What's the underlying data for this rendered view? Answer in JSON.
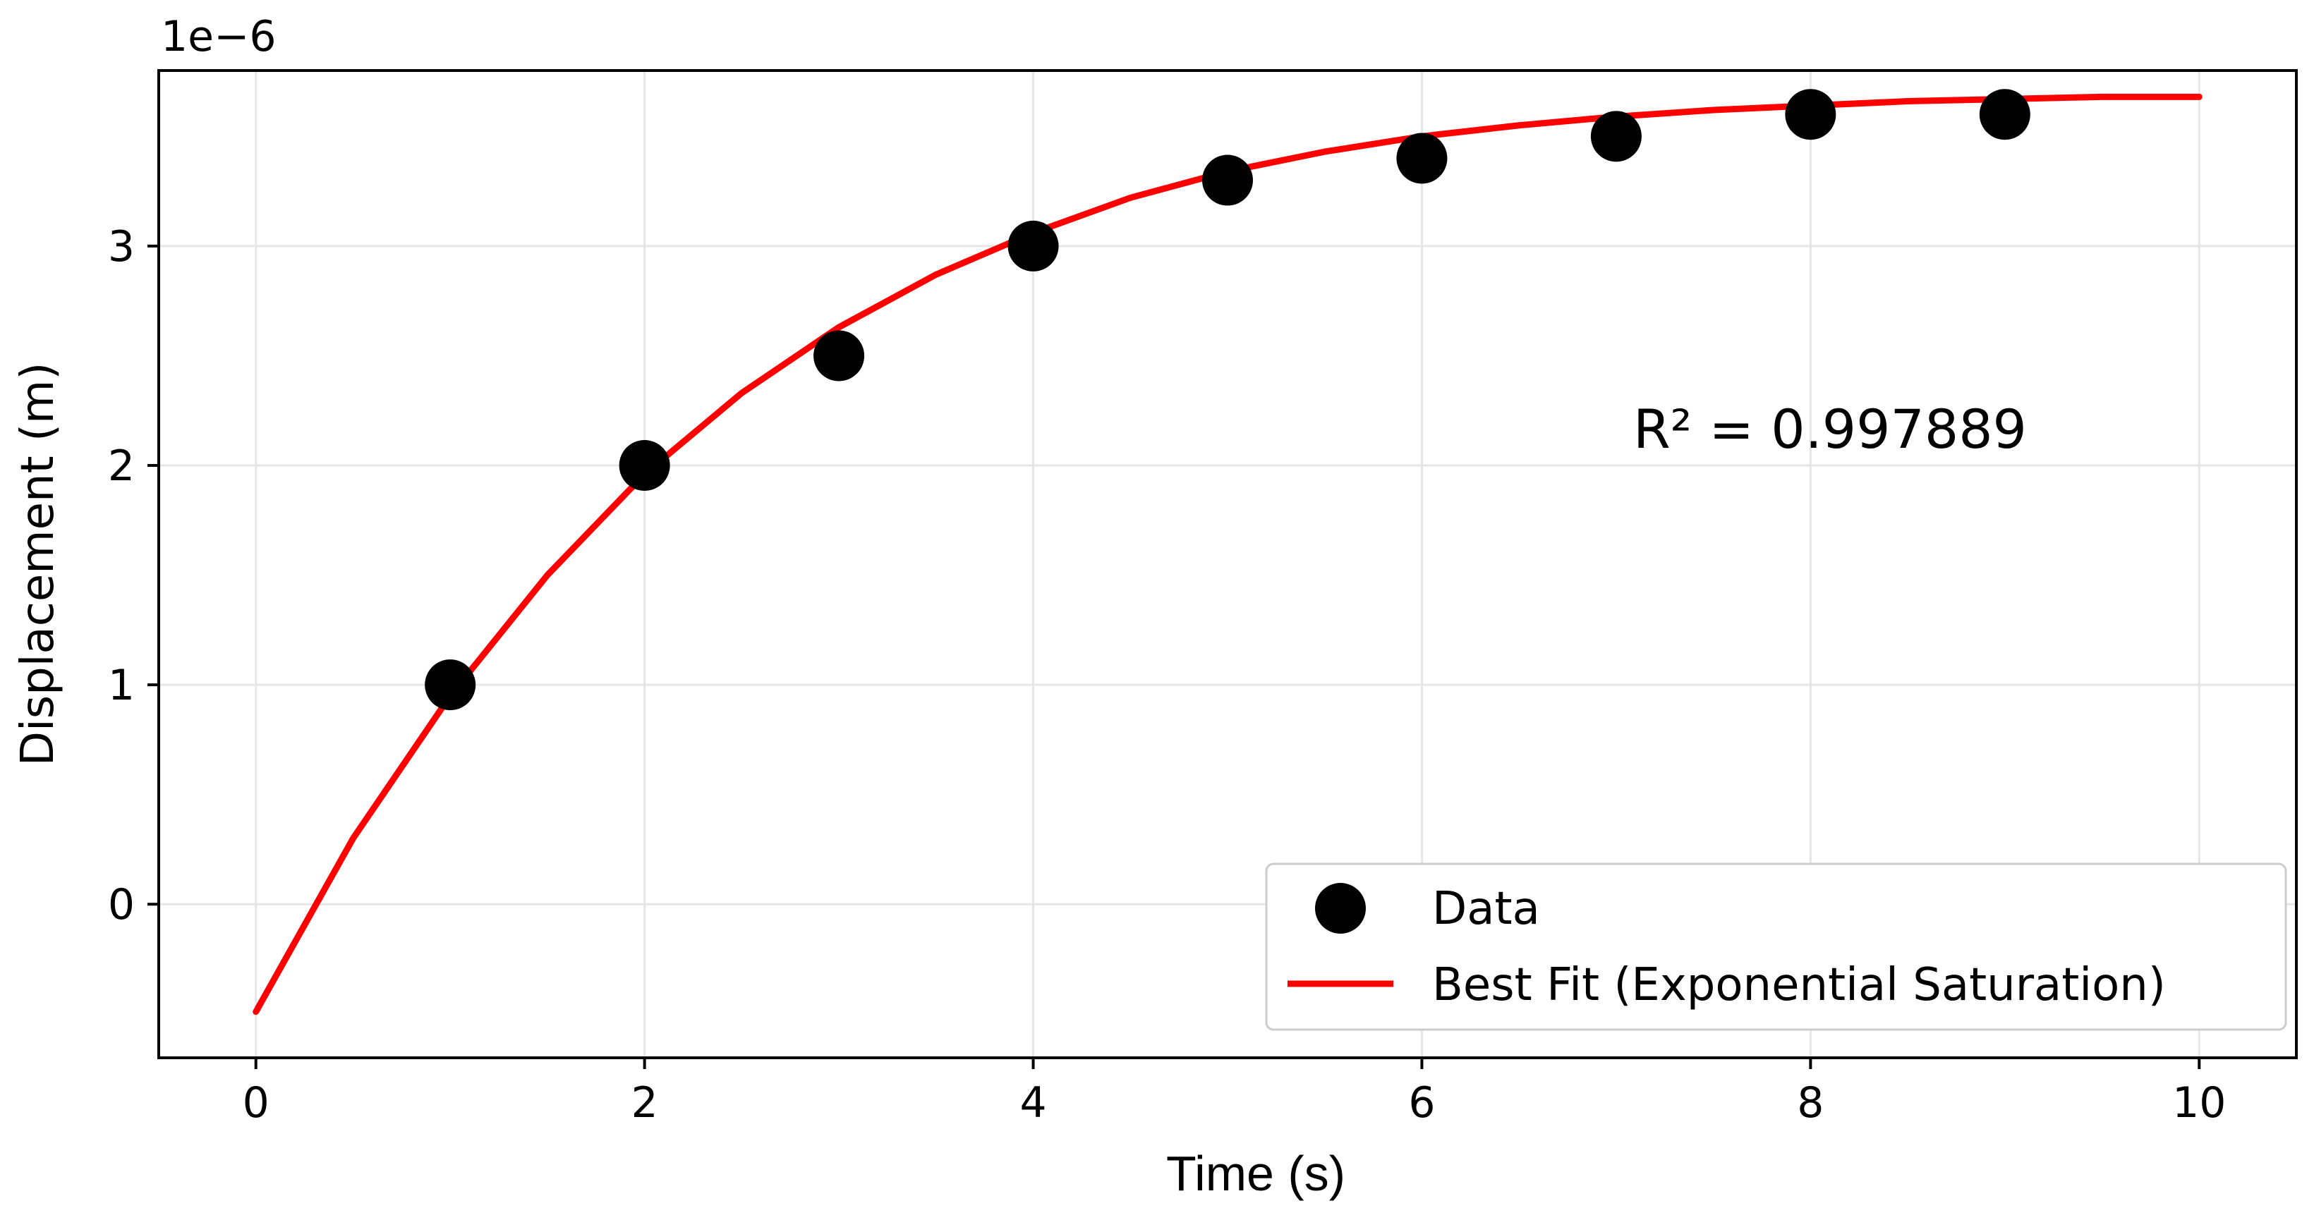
{
  "chart_data": {
    "type": "scatter",
    "xlabel": "Time (s)",
    "ylabel": "Displacement (m)",
    "offset_text": "1e−6",
    "xlim": [
      -0.5,
      10.5
    ],
    "ylim": [
      -0.7,
      3.8
    ],
    "scale_factor": 1e-06,
    "xticks": [
      0,
      2,
      4,
      6,
      8,
      10
    ],
    "xtick_labels": [
      "0",
      "2",
      "4",
      "6",
      "8",
      "10"
    ],
    "yticks": [
      0,
      1,
      2,
      3
    ],
    "ytick_labels": [
      "0",
      "1",
      "2",
      "3"
    ],
    "grid": true,
    "legend_position": "lower-right",
    "annotation": "R² = 0.997889",
    "series": [
      {
        "name": "Data",
        "kind": "scatter",
        "color": "#000000",
        "x": [
          1,
          2,
          3,
          4,
          5,
          6,
          7,
          8,
          9
        ],
        "y": [
          1.0,
          2.0,
          2.5,
          3.0,
          3.3,
          3.4,
          3.5,
          3.6,
          3.6
        ]
      },
      {
        "name": "Best Fit (Exponential Saturation)",
        "kind": "line",
        "color": "#ff0000",
        "x": [
          0,
          0.5,
          1,
          1.5,
          2,
          2.5,
          3,
          3.5,
          4,
          4.5,
          5,
          5.5,
          6,
          6.5,
          7,
          7.5,
          8,
          8.5,
          9,
          9.5,
          10
        ],
        "y": [
          -0.49,
          0.3,
          0.95,
          1.5,
          1.96,
          2.33,
          2.63,
          2.87,
          3.06,
          3.22,
          3.34,
          3.43,
          3.5,
          3.55,
          3.59,
          3.62,
          3.64,
          3.66,
          3.67,
          3.68,
          3.68
        ]
      }
    ]
  }
}
